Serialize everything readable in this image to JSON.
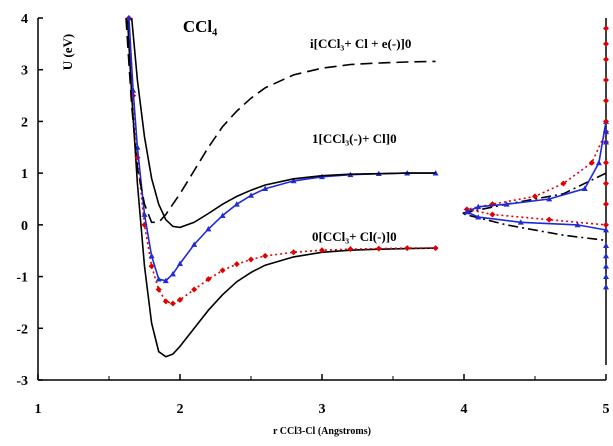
{
  "chart_data": {
    "type": "line",
    "title": "CCl₄",
    "y_label": "U (eV)",
    "x_label": "r CCl3-Cl (Angstroms)",
    "annotations": [
      "i[CCl₃+  Cl + e(-)]0",
      "1[CCl₃(-)+ Cl]0",
      "0[CCl₃+ Cl(-)]0"
    ],
    "xlim": [
      1,
      5
    ],
    "xticks": [
      1,
      2,
      3,
      4,
      5
    ],
    "xminor_ticks": [
      1.5,
      2.5,
      3.5,
      4.5
    ],
    "ylim": [
      -3,
      4
    ],
    "yticks": [
      -3,
      -2,
      -1,
      0,
      1,
      2,
      3,
      4
    ],
    "series": [
      {
        "color": "#000000",
        "dash": "solid",
        "marker": "none",
        "x": [
          1.63,
          1.66,
          1.7,
          1.75,
          1.8,
          1.85,
          1.9,
          1.95,
          2.0,
          2.1,
          2.2,
          2.3,
          2.4,
          2.5,
          2.6,
          2.8,
          3.0,
          3.2,
          3.4,
          3.6,
          3.8
        ],
        "values": [
          4.0,
          2.5,
          0.8,
          -0.8,
          -1.9,
          -2.45,
          -2.55,
          -2.5,
          -2.35,
          -2.0,
          -1.65,
          -1.35,
          -1.1,
          -0.92,
          -0.78,
          -0.62,
          -0.53,
          -0.49,
          -0.47,
          -0.46,
          -0.45
        ]
      },
      {
        "color": "#e00000",
        "dash": "dotted",
        "marker": "diamond",
        "x": [
          1.64,
          1.67,
          1.7,
          1.75,
          1.8,
          1.85,
          1.9,
          1.95,
          2.0,
          2.1,
          2.2,
          2.3,
          2.4,
          2.5,
          2.6,
          2.8,
          3.0,
          3.2,
          3.4,
          3.6,
          3.8
        ],
        "values": [
          4.0,
          2.5,
          1.3,
          0.0,
          -0.8,
          -1.25,
          -1.48,
          -1.52,
          -1.45,
          -1.25,
          -1.05,
          -0.88,
          -0.76,
          -0.67,
          -0.6,
          -0.53,
          -0.49,
          -0.47,
          -0.46,
          -0.45,
          -0.45
        ]
      },
      {
        "color": "#1f2bd6",
        "dash": "solid",
        "marker": "triangle",
        "x": [
          1.64,
          1.67,
          1.7,
          1.75,
          1.8,
          1.85,
          1.9,
          1.95,
          2.0,
          2.1,
          2.2,
          2.3,
          2.4,
          2.5,
          2.6,
          2.8,
          3.0,
          3.2,
          3.4,
          3.6,
          3.8
        ],
        "values": [
          4.0,
          2.6,
          1.5,
          0.2,
          -0.6,
          -1.05,
          -1.08,
          -0.95,
          -0.75,
          -0.38,
          -0.08,
          0.18,
          0.4,
          0.57,
          0.7,
          0.85,
          0.93,
          0.97,
          0.99,
          1.0,
          1.0
        ]
      },
      {
        "color": "#000000",
        "dash": "solid",
        "marker": "none",
        "x": [
          1.66,
          1.7,
          1.75,
          1.8,
          1.85,
          1.9,
          1.95,
          2.0,
          2.1,
          2.2,
          2.3,
          2.4,
          2.5,
          2.6,
          2.8,
          3.0,
          3.2,
          3.4,
          3.6,
          3.8
        ],
        "values": [
          4.0,
          2.8,
          1.7,
          0.9,
          0.4,
          0.1,
          -0.03,
          -0.05,
          0.05,
          0.22,
          0.4,
          0.55,
          0.67,
          0.77,
          0.89,
          0.95,
          0.98,
          0.99,
          1.0,
          1.0
        ]
      },
      {
        "color": "#000000",
        "dash": "dashed",
        "marker": "none",
        "x": [
          1.62,
          1.66,
          1.7,
          1.75,
          1.8,
          1.85,
          1.9,
          2.0,
          2.1,
          2.2,
          2.3,
          2.4,
          2.5,
          2.6,
          2.8,
          3.0,
          3.2,
          3.4,
          3.6,
          3.8
        ],
        "values": [
          4.0,
          2.3,
          1.1,
          0.4,
          0.05,
          0.05,
          0.2,
          0.6,
          1.05,
          1.5,
          1.9,
          2.2,
          2.45,
          2.65,
          2.9,
          3.03,
          3.1,
          3.13,
          3.15,
          3.16
        ]
      },
      {
        "color": "#000000",
        "dash": "dashdot",
        "marker": "none",
        "x": [
          5,
          4.7,
          4.3,
          3.98,
          4.3,
          4.7,
          5
        ],
        "values": [
          1.0,
          0.6,
          0.4,
          0.22,
          0.0,
          -0.2,
          -0.3
        ]
      },
      {
        "color": "#e00000",
        "dash": "dotted",
        "marker": "diamond",
        "x": [
          5,
          4.9,
          4.7,
          4.5,
          4.2,
          4.02,
          4.2,
          4.6,
          5
        ],
        "values": [
          1.8,
          1.2,
          0.8,
          0.55,
          0.4,
          0.3,
          0.2,
          0.1,
          0.0
        ]
      },
      {
        "color": "#1f2bd6",
        "dash": "solid",
        "marker": "triangle",
        "x": [
          5,
          4.95,
          4.85,
          4.6,
          4.3,
          4.1,
          4.02,
          4.1,
          4.4,
          4.8,
          5
        ],
        "values": [
          2.0,
          1.2,
          0.7,
          0.5,
          0.4,
          0.35,
          0.25,
          0.15,
          0.05,
          0.0,
          -0.1
        ]
      },
      {
        "color": "#e00000",
        "dash": "none",
        "marker": "diamond",
        "x": [
          5,
          5,
          5,
          5,
          5,
          5,
          5,
          5,
          5,
          5
        ],
        "values": [
          0.4,
          0.8,
          1.2,
          1.6,
          2.0,
          2.4,
          2.8,
          3.2,
          3.5,
          3.8
        ]
      },
      {
        "color": "#1f2bd6",
        "dash": "none",
        "marker": "triangle",
        "x": [
          5,
          5,
          5,
          5,
          5,
          5,
          5
        ],
        "values": [
          -1.2,
          -1.0,
          -0.8,
          -0.6,
          -0.4,
          1.6,
          1.8
        ]
      }
    ]
  }
}
